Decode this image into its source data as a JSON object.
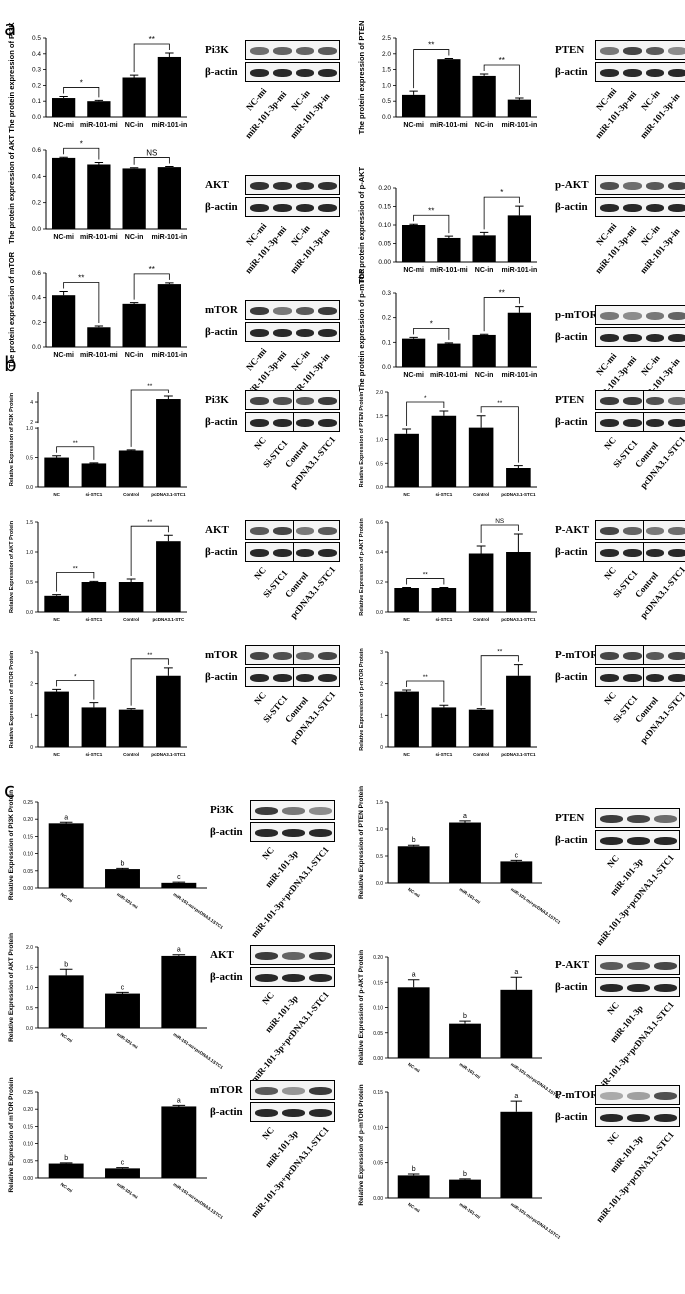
{
  "panels": [
    "a",
    "b",
    "c"
  ],
  "chart_data": [
    {
      "id": "a1",
      "type": "bar",
      "ylabel": "The protein expression of PI3K",
      "categories": [
        "NC-mi",
        "miR-101-mi",
        "NC-in",
        "miR-101-in"
      ],
      "values": [
        0.12,
        0.1,
        0.25,
        0.38
      ],
      "errors": [
        0.01,
        0.005,
        0.015,
        0.025
      ],
      "ylim": [
        0,
        0.5
      ],
      "yticks": [
        "0.0",
        "0.1",
        "0.2",
        "0.3",
        "0.4",
        "0.5"
      ],
      "annotations": [
        {
          "from": 0,
          "to": 1,
          "label": "*"
        },
        {
          "from": 2,
          "to": 3,
          "label": "**"
        }
      ]
    },
    {
      "id": "a2",
      "type": "bar",
      "ylabel": "The protein expression of PTEN",
      "categories": [
        "NC-mi",
        "miR-101-mi",
        "NC-in",
        "miR-101-in"
      ],
      "values": [
        0.7,
        1.83,
        1.3,
        0.55
      ],
      "errors": [
        0.12,
        0.02,
        0.06,
        0.05
      ],
      "ylim": [
        0,
        2.5
      ],
      "yticks": [
        "0.0",
        "0.5",
        "1.0",
        "1.5",
        "2.0",
        "2.5"
      ],
      "annotations": [
        {
          "from": 0,
          "to": 1,
          "label": "**"
        },
        {
          "from": 2,
          "to": 3,
          "label": "**"
        }
      ]
    },
    {
      "id": "a3",
      "type": "bar",
      "ylabel": "The protein expression of AKT",
      "categories": [
        "NC-mi",
        "miR-101-mi",
        "NC-in",
        "miR-101-in"
      ],
      "values": [
        0.54,
        0.49,
        0.46,
        0.47
      ],
      "errors": [
        0.005,
        0.015,
        0.005,
        0.005
      ],
      "ylim": [
        0,
        0.6
      ],
      "yticks": [
        "0.0",
        "0.2",
        "0.4",
        "0.6"
      ],
      "annotations": [
        {
          "from": 0,
          "to": 1,
          "label": "*"
        },
        {
          "from": 2,
          "to": 3,
          "label": "NS"
        }
      ]
    },
    {
      "id": "a4",
      "type": "bar",
      "ylabel": "The protein expression of p-AKT",
      "categories": [
        "NC-mi",
        "miR-101-mi",
        "NC-in",
        "miR-101-in"
      ],
      "values": [
        0.1,
        0.065,
        0.072,
        0.126
      ],
      "errors": [
        0.002,
        0.005,
        0.008,
        0.025
      ],
      "ylim": [
        0,
        0.2
      ],
      "yticks": [
        "0.00",
        "0.05",
        "0.10",
        "0.15",
        "0.20"
      ],
      "annotations": [
        {
          "from": 0,
          "to": 1,
          "label": "**"
        },
        {
          "from": 2,
          "to": 3,
          "label": "*"
        }
      ]
    },
    {
      "id": "a5",
      "type": "bar",
      "ylabel": "The protein expression of mTOR",
      "categories": [
        "NC-mi",
        "miR-101-mi",
        "NC-in",
        "miR-101-in"
      ],
      "values": [
        0.42,
        0.16,
        0.35,
        0.51
      ],
      "errors": [
        0.03,
        0.01,
        0.01,
        0.01
      ],
      "ylim": [
        0,
        0.6
      ],
      "yticks": [
        "0.0",
        "0.2",
        "0.4",
        "0.6"
      ],
      "annotations": [
        {
          "from": 0,
          "to": 1,
          "label": "**"
        },
        {
          "from": 2,
          "to": 3,
          "label": "**"
        }
      ]
    },
    {
      "id": "a6",
      "type": "bar",
      "ylabel": "The protein expression of p-mTOR",
      "categories": [
        "NC-mi",
        "miR-101-mi",
        "NC-in",
        "miR-101-in"
      ],
      "values": [
        0.115,
        0.095,
        0.13,
        0.22
      ],
      "errors": [
        0.005,
        0.003,
        0.003,
        0.025
      ],
      "ylim": [
        0,
        0.3
      ],
      "yticks": [
        "0.0",
        "0.1",
        "0.2",
        "0.3"
      ],
      "annotations": [
        {
          "from": 0,
          "to": 1,
          "label": "*"
        },
        {
          "from": 2,
          "to": 3,
          "label": "**"
        }
      ]
    },
    {
      "id": "b1",
      "type": "bar",
      "ylabel": "Relative Expression of PI3K Protein",
      "categories": [
        "NC",
        "si-STC1",
        "Control",
        "pcDNA3.1-STC1"
      ],
      "values": [
        0.5,
        0.4,
        0.62,
        4.3
      ],
      "errors": [
        0.03,
        0.01,
        0.01,
        0.3
      ],
      "ylim": [
        0,
        5
      ],
      "broken_axis": {
        "lower_max": 1.0,
        "upper": [
          2,
          5
        ]
      },
      "yticks": [
        "0.0",
        "0.5",
        "1.0",
        "2",
        "4"
      ],
      "annotations": [
        {
          "from": 0,
          "to": 1,
          "label": "**"
        },
        {
          "from": 2,
          "to": 3,
          "label": "**"
        }
      ]
    },
    {
      "id": "b2",
      "type": "bar",
      "ylabel": "Relative Expression of PTEN Protein",
      "categories": [
        "NC",
        "si-STC1",
        "Control",
        "pcDNA3.1-STC1"
      ],
      "values": [
        1.12,
        1.5,
        1.25,
        0.4
      ],
      "errors": [
        0.1,
        0.1,
        0.25,
        0.05
      ],
      "ylim": [
        0,
        2.0
      ],
      "yticks": [
        "0.0",
        "0.5",
        "1.0",
        "1.5",
        "2.0"
      ],
      "annotations": [
        {
          "from": 0,
          "to": 1,
          "label": "*"
        },
        {
          "from": 2,
          "to": 3,
          "label": "**"
        }
      ]
    },
    {
      "id": "b3",
      "type": "bar",
      "ylabel": "Relative Expression of AKT Protein",
      "categories": [
        "NC",
        "si-STC1",
        "Control",
        "pcDNA3.1-STC"
      ],
      "values": [
        0.27,
        0.5,
        0.5,
        1.18
      ],
      "errors": [
        0.02,
        0.01,
        0.05,
        0.1
      ],
      "ylim": [
        0,
        1.5
      ],
      "yticks": [
        "0.0",
        "0.5",
        "1.0",
        "1.5"
      ],
      "annotations": [
        {
          "from": 0,
          "to": 1,
          "label": "**"
        },
        {
          "from": 2,
          "to": 3,
          "label": "**"
        }
      ]
    },
    {
      "id": "b4",
      "type": "bar",
      "ylabel": "Relative Expression of p-AKT Protein",
      "categories": [
        "NC",
        "si-STC1",
        "Control",
        "pcDNA3.1-STC1"
      ],
      "values": [
        0.16,
        0.16,
        0.39,
        0.4
      ],
      "errors": [
        0.003,
        0.003,
        0.05,
        0.12
      ],
      "ylim": [
        0,
        0.6
      ],
      "yticks": [
        "0.0",
        "0.2",
        "0.4",
        "0.6"
      ],
      "annotations": [
        {
          "from": 0,
          "to": 1,
          "label": "**"
        },
        {
          "from": 2,
          "to": 3,
          "label": "NS"
        }
      ]
    },
    {
      "id": "b5",
      "type": "bar",
      "ylabel": "Relative Expression of mTOR Protein",
      "categories": [
        "NC",
        "si-STC1",
        "Control",
        "pcDNA3.1-STC1"
      ],
      "values": [
        1.75,
        1.25,
        1.18,
        2.25
      ],
      "errors": [
        0.07,
        0.15,
        0.03,
        0.25
      ],
      "ylim": [
        0,
        3
      ],
      "yticks": [
        "0",
        "1",
        "2",
        "3"
      ],
      "annotations": [
        {
          "from": 0,
          "to": 1,
          "label": "*"
        },
        {
          "from": 2,
          "to": 3,
          "label": "**"
        }
      ]
    },
    {
      "id": "b6",
      "type": "bar",
      "ylabel": "Relative Expression of p-mTOR Protein",
      "categories": [
        "NC",
        "si-STC1",
        "Control",
        "pcDNA3.1-STC1"
      ],
      "values": [
        1.75,
        1.25,
        1.18,
        2.25
      ],
      "errors": [
        0.05,
        0.07,
        0.03,
        0.35
      ],
      "ylim": [
        0,
        3
      ],
      "yticks": [
        "0",
        "1",
        "2",
        "3"
      ],
      "annotations": [
        {
          "from": 0,
          "to": 1,
          "label": "**"
        },
        {
          "from": 2,
          "to": 3,
          "label": "**"
        }
      ]
    },
    {
      "id": "c1",
      "type": "bar",
      "ylabel": "Relative Expression of PI3K Protein",
      "categories": [
        "NC-mi",
        "miR-101-mi",
        "miR-101-mi+pcDNA3.1STC1"
      ],
      "values": [
        0.188,
        0.055,
        0.015
      ],
      "errors": [
        0.003,
        0.002,
        0.002
      ],
      "ylim": [
        0,
        0.25
      ],
      "yticks": [
        "0.00",
        "0.05",
        "0.10",
        "0.15",
        "0.20",
        "0.25"
      ],
      "letters": [
        "a",
        "b",
        "c"
      ]
    },
    {
      "id": "c2",
      "type": "bar",
      "ylabel": "Relative Expression of PTEN Protein",
      "categories": [
        "NC-mi",
        "miR-101-mi",
        "miR-101-mi+pcDNA3.1STC1"
      ],
      "values": [
        0.68,
        1.12,
        0.4
      ],
      "errors": [
        0.02,
        0.03,
        0.02
      ],
      "ylim": [
        0,
        1.5
      ],
      "yticks": [
        "0.0",
        "0.5",
        "1.0",
        "1.5"
      ],
      "letters": [
        "b",
        "a",
        "c"
      ]
    },
    {
      "id": "c3",
      "type": "bar",
      "ylabel": "Relative Expression of AKT Protein",
      "categories": [
        "NC-mi",
        "miR-101-mi",
        "miR-101-mi+pcDNA3.1STC1"
      ],
      "values": [
        1.3,
        0.85,
        1.78
      ],
      "errors": [
        0.15,
        0.03,
        0.03
      ],
      "ylim": [
        0,
        2.0
      ],
      "yticks": [
        "0.0",
        "0.5",
        "1.0",
        "1.5",
        "2.0"
      ],
      "letters": [
        "b",
        "c",
        "a"
      ]
    },
    {
      "id": "c4",
      "type": "bar",
      "ylabel": "Relative Expression of p-AKT Protein",
      "categories": [
        "NC-mi",
        "miR-101-mi",
        "miR-101-mi+pcDNA3.1STC1"
      ],
      "values": [
        0.14,
        0.068,
        0.135
      ],
      "errors": [
        0.015,
        0.005,
        0.025
      ],
      "ylim": [
        0,
        0.2
      ],
      "yticks": [
        "0.00",
        "0.05",
        "0.10",
        "0.15",
        "0.20"
      ],
      "letters": [
        "a",
        "b",
        "a"
      ]
    },
    {
      "id": "c5",
      "type": "bar",
      "ylabel": "Relative Expression of mTOR Protein",
      "categories": [
        "NC-mi",
        "miR-101-mi",
        "miR-101-mi+pcDNA3.1STC1"
      ],
      "values": [
        0.042,
        0.028,
        0.208
      ],
      "errors": [
        0.002,
        0.002,
        0.003
      ],
      "ylim": [
        0,
        0.25
      ],
      "yticks": [
        "0.00",
        "0.05",
        "0.10",
        "0.15",
        "0.20",
        "0.25"
      ],
      "letters": [
        "b",
        "c",
        "a"
      ]
    },
    {
      "id": "c6",
      "type": "bar",
      "ylabel": "Relative Expression of p-mTOR Protein",
      "categories": [
        "NC-mi",
        "miR-101-mi",
        "miR-101-mi+pcDNA3.1STC1"
      ],
      "values": [
        0.032,
        0.026,
        0.122
      ],
      "errors": [
        0.002,
        0.001,
        0.015
      ],
      "ylim": [
        0,
        0.15
      ],
      "yticks": [
        "0.00",
        "0.05",
        "0.10",
        "0.15"
      ],
      "letters": [
        "b",
        "b",
        "a"
      ]
    }
  ],
  "blots": [
    {
      "id": "ba1",
      "protein": "Pi3K",
      "control": "β-actin",
      "lanes": [
        "NC-mi",
        "miR-101-3p-mi",
        "NC-in",
        "miR-101-3p-in"
      ],
      "split": false
    },
    {
      "id": "ba2",
      "protein": "PTEN",
      "control": "β-actin",
      "lanes": [
        "NC-mi",
        "miR-101-3p-mi",
        "NC-in",
        "miR-101-3p-in"
      ],
      "split": false
    },
    {
      "id": "ba3",
      "protein": "AKT",
      "control": "β-actin",
      "lanes": [
        "NC-mi",
        "miR-101-3p-mi",
        "NC-in",
        "miR-101-3p-in"
      ],
      "split": false
    },
    {
      "id": "ba4",
      "protein": "p-AKT",
      "control": "β-actin",
      "lanes": [
        "NC-mi",
        "miR-101-3p-mi",
        "NC-in",
        "miR-101-3p-in"
      ],
      "split": false
    },
    {
      "id": "ba5",
      "protein": "mTOR",
      "control": "β-actin",
      "lanes": [
        "NC-mi",
        "miR-101-3p-mi",
        "NC-in",
        "miR-101-3p-in"
      ],
      "split": false
    },
    {
      "id": "ba6",
      "protein": "p-mTOR",
      "control": "β-actin",
      "lanes": [
        "NC-mi",
        "miR-101-3p-mi",
        "NC-in",
        "miR-101-3p-in"
      ],
      "split": false
    },
    {
      "id": "bb1",
      "protein": "Pi3K",
      "control": "β-actin",
      "lanes": [
        "NC",
        "Si-STC1",
        "Control",
        "pcDNA3.1-STC1"
      ],
      "split": true
    },
    {
      "id": "bb2",
      "protein": "PTEN",
      "control": "β-actin",
      "lanes": [
        "NC",
        "Si-STC1",
        "Control",
        "pcDNA3.1-STC1"
      ],
      "split": true
    },
    {
      "id": "bb3",
      "protein": "AKT",
      "control": "β-actin",
      "lanes": [
        "NC",
        "Si-STC1",
        "Control",
        "pcDNA3.1-STC1"
      ],
      "split": true
    },
    {
      "id": "bb4",
      "protein": "P-AKT",
      "control": "β-actin",
      "lanes": [
        "NC",
        "Si-STC1",
        "Control",
        "pcDNA3.1-STC1"
      ],
      "split": true
    },
    {
      "id": "bb5",
      "protein": "mTOR",
      "control": "β-actin",
      "lanes": [
        "NC",
        "Si-STC1",
        "Control",
        "pcDNA3.1-STC1"
      ],
      "split": true
    },
    {
      "id": "bb6",
      "protein": "P-mTOR",
      "control": "β-actin",
      "lanes": [
        "NC",
        "Si-STC1",
        "Control",
        "pcDNA3.1-STC1"
      ],
      "split": true
    },
    {
      "id": "bc1",
      "protein": "Pi3K",
      "control": "β-actin",
      "lanes": [
        "NC",
        "miR-101-3p",
        "miR-101-3p+pcDNA3.1-STC1"
      ],
      "split": false
    },
    {
      "id": "bc2",
      "protein": "PTEN",
      "control": "β-actin",
      "lanes": [
        "NC",
        "miR-101-3p",
        "miR-101-3p+pcDNA3.1-STC1"
      ],
      "split": false
    },
    {
      "id": "bc3",
      "protein": "AKT",
      "control": "β-actin",
      "lanes": [
        "NC",
        "miR-101-3p",
        "miR-101-3p+pcDNA3.1-STC1"
      ],
      "split": false
    },
    {
      "id": "bc4",
      "protein": "P-AKT",
      "control": "β-actin",
      "lanes": [
        "NC",
        "miR-101-3p",
        "miR-101-3p+pcDNA3.1-STC1"
      ],
      "split": false
    },
    {
      "id": "bc5",
      "protein": "mTOR",
      "control": "β-actin",
      "lanes": [
        "NC",
        "miR-101-3p",
        "miR-101-3p+pcDNA3.1-STC1"
      ],
      "split": false
    },
    {
      "id": "bc6",
      "protein": "P-mTOR",
      "control": "β-actin",
      "lanes": [
        "NC",
        "miR-101-3p",
        "miR-101-3p+pcDNA3.1-STC1"
      ],
      "split": false
    }
  ]
}
